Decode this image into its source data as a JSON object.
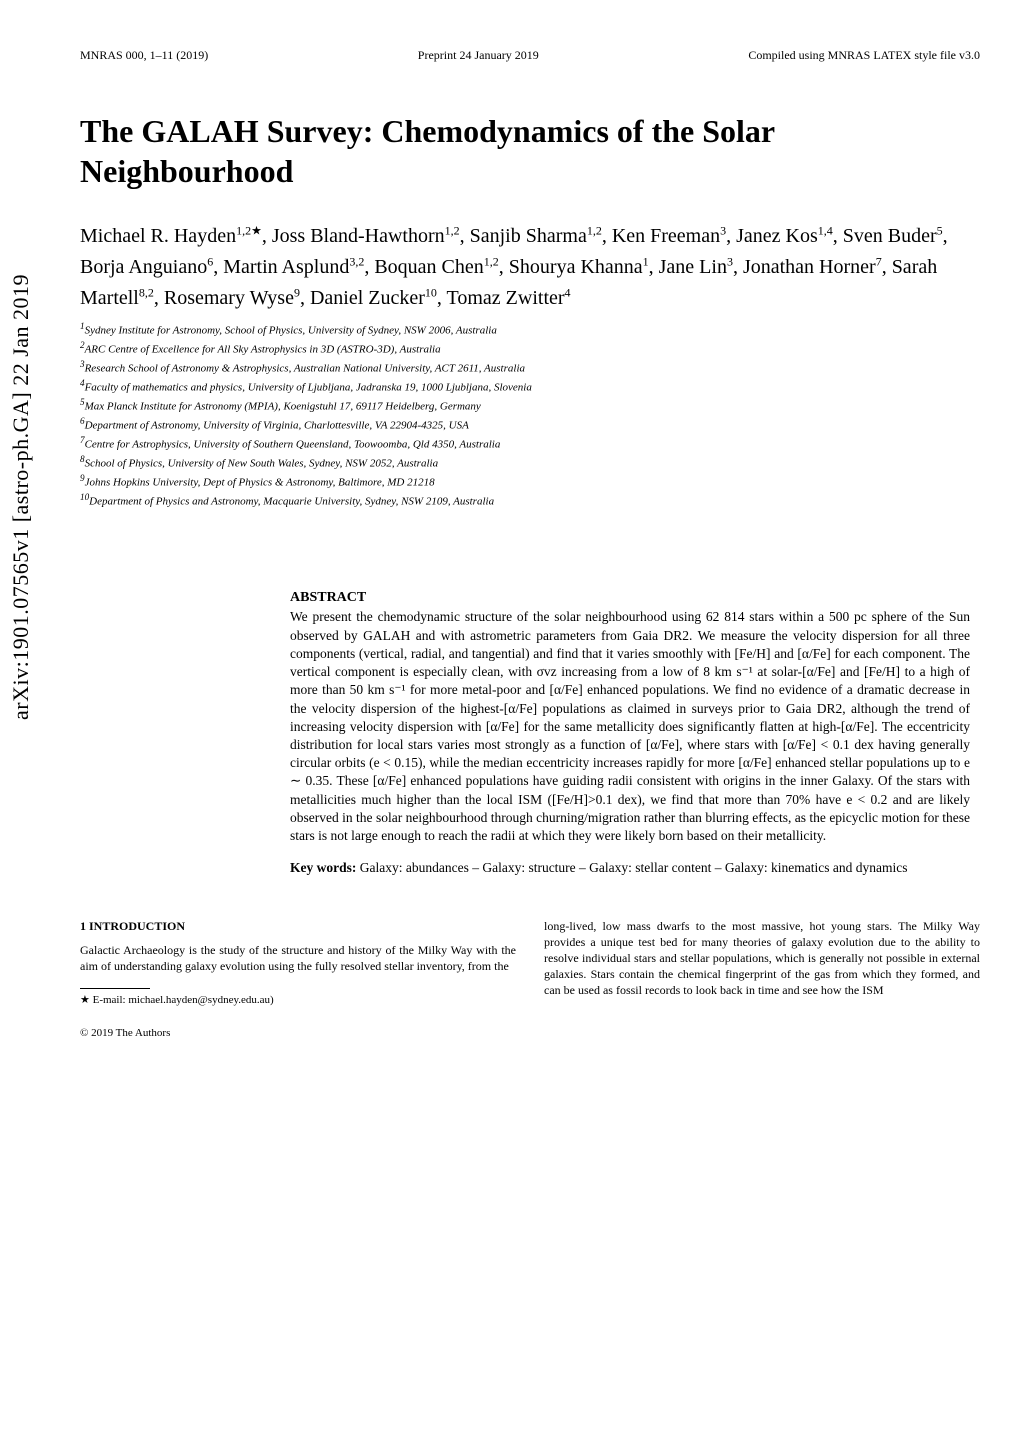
{
  "arxiv_stamp": "arXiv:1901.07565v1  [astro-ph.GA]  22 Jan 2019",
  "header": {
    "left": "MNRAS 000, 1–11 (2019)",
    "center": "Preprint 24 January 2019",
    "right": "Compiled using MNRAS LATEX style file v3.0"
  },
  "title": "The GALAH Survey: Chemodynamics of the Solar Neighbourhood",
  "authors_html": "Michael R. Hayden<sup>1,2★</sup>, Joss Bland-Hawthorn<sup>1,2</sup>, Sanjib Sharma<sup>1,2</sup>, Ken Freeman<sup>3</sup>, Janez Kos<sup>1,4</sup>, Sven Buder<sup>5</sup>, Borja Anguiano<sup>6</sup>, Martin Asplund<sup>3,2</sup>, Boquan Chen<sup>1,2</sup>, Shourya Khanna<sup>1</sup>, Jane Lin<sup>3</sup>, Jonathan Horner<sup>7</sup>, Sarah Martell<sup>8,2</sup>, Rosemary Wyse<sup>9</sup>, Daniel Zucker<sup>10</sup>, Tomaz Zwitter<sup>4</sup>",
  "affiliations": [
    "1 Sydney Institute for Astronomy, School of Physics, University of Sydney, NSW 2006, Australia",
    "2 ARC Centre of Excellence for All Sky Astrophysics in 3D (ASTRO-3D), Australia",
    "3 Research School of Astronomy & Astrophysics, Australian National University, ACT 2611, Australia",
    "4 Faculty of mathematics and physics, University of Ljubljana, Jadranska 19, 1000 Ljubljana, Slovenia",
    "5 Max Planck Institute for Astronomy (MPIA), Koenigstuhl 17, 69117 Heidelberg, Germany",
    "6 Department of Astronomy, University of Virginia, Charlottesville, VA 22904-4325, USA",
    "7 Centre for Astrophysics, University of Southern Queensland, Toowoomba, Qld 4350, Australia",
    "8 School of Physics, University of New South Wales, Sydney, NSW 2052, Australia",
    "9 Johns Hopkins University, Dept of Physics & Astronomy, Baltimore, MD 21218",
    "10 Department of Physics and Astronomy, Macquarie University, Sydney, NSW 2109, Australia"
  ],
  "abstract": {
    "heading": "ABSTRACT",
    "text": "We present the chemodynamic structure of the solar neighbourhood using 62 814 stars within a 500 pc sphere of the Sun observed by GALAH and with astrometric parameters from Gaia DR2. We measure the velocity dispersion for all three components (vertical, radial, and tangential) and find that it varies smoothly with [Fe/H] and [α/Fe] for each component. The vertical component is especially clean, with σvz increasing from a low of 8 km s⁻¹ at solar-[α/Fe] and [Fe/H] to a high of more than 50 km s⁻¹ for more metal-poor and [α/Fe] enhanced populations. We find no evidence of a dramatic decrease in the velocity dispersion of the highest-[α/Fe] populations as claimed in surveys prior to Gaia DR2, although the trend of increasing velocity dispersion with [α/Fe] for the same metallicity does significantly flatten at high-[α/Fe]. The eccentricity distribution for local stars varies most strongly as a function of [α/Fe], where stars with [α/Fe] < 0.1 dex having generally circular orbits (e < 0.15), while the median eccentricity increases rapidly for more [α/Fe] enhanced stellar populations up to e ∼ 0.35. These [α/Fe] enhanced populations have guiding radii consistent with origins in the inner Galaxy. Of the stars with metallicities much higher than the local ISM ([Fe/H]>0.1 dex), we find that more than 70% have e < 0.2 and are likely observed in the solar neighbourhood through churning/migration rather than blurring effects, as the epicyclic motion for these stars is not large enough to reach the radii at which they were likely born based on their metallicity.",
    "keywords_label": "Key words:",
    "keywords_text": " Galaxy: abundances – Galaxy: structure – Galaxy: stellar content – Galaxy: kinematics and dynamics"
  },
  "section1": {
    "heading": "1   INTRODUCTION",
    "left_text": "Galactic Archaeology is the study of the structure and history of the Milky Way with the aim of understanding galaxy evolution using the fully resolved stellar inventory, from the",
    "right_text": "long-lived, low mass dwarfs to the most massive, hot young stars. The Milky Way provides a unique test bed for many theories of galaxy evolution due to the ability to resolve individual stars and stellar populations, which is generally not possible in external galaxies. Stars contain the chemical fingerprint of the gas from which they formed, and can be used as fossil records to look back in time and see how the ISM"
  },
  "footnote": "★ E-mail: michael.hayden@sydney.edu.au)",
  "copyright": "© 2019 The Authors"
}
